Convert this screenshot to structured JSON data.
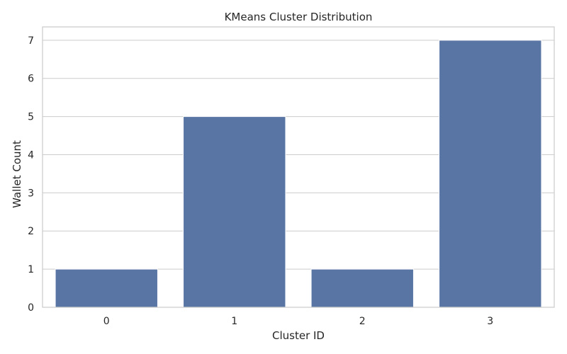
{
  "chart_data": {
    "type": "bar",
    "title": "KMeans Cluster Distribution",
    "xlabel": "Cluster ID",
    "ylabel": "Wallet Count",
    "categories": [
      "0",
      "1",
      "2",
      "3"
    ],
    "values": [
      1,
      5,
      1,
      7
    ],
    "ylim": [
      0,
      7.35
    ],
    "yticks": [
      "0",
      "1",
      "2",
      "3",
      "4",
      "5",
      "6",
      "7"
    ],
    "grid": true,
    "bar_color": "#5975a4",
    "grid_color": "#cccccc",
    "spine_color": "#cccccc"
  }
}
